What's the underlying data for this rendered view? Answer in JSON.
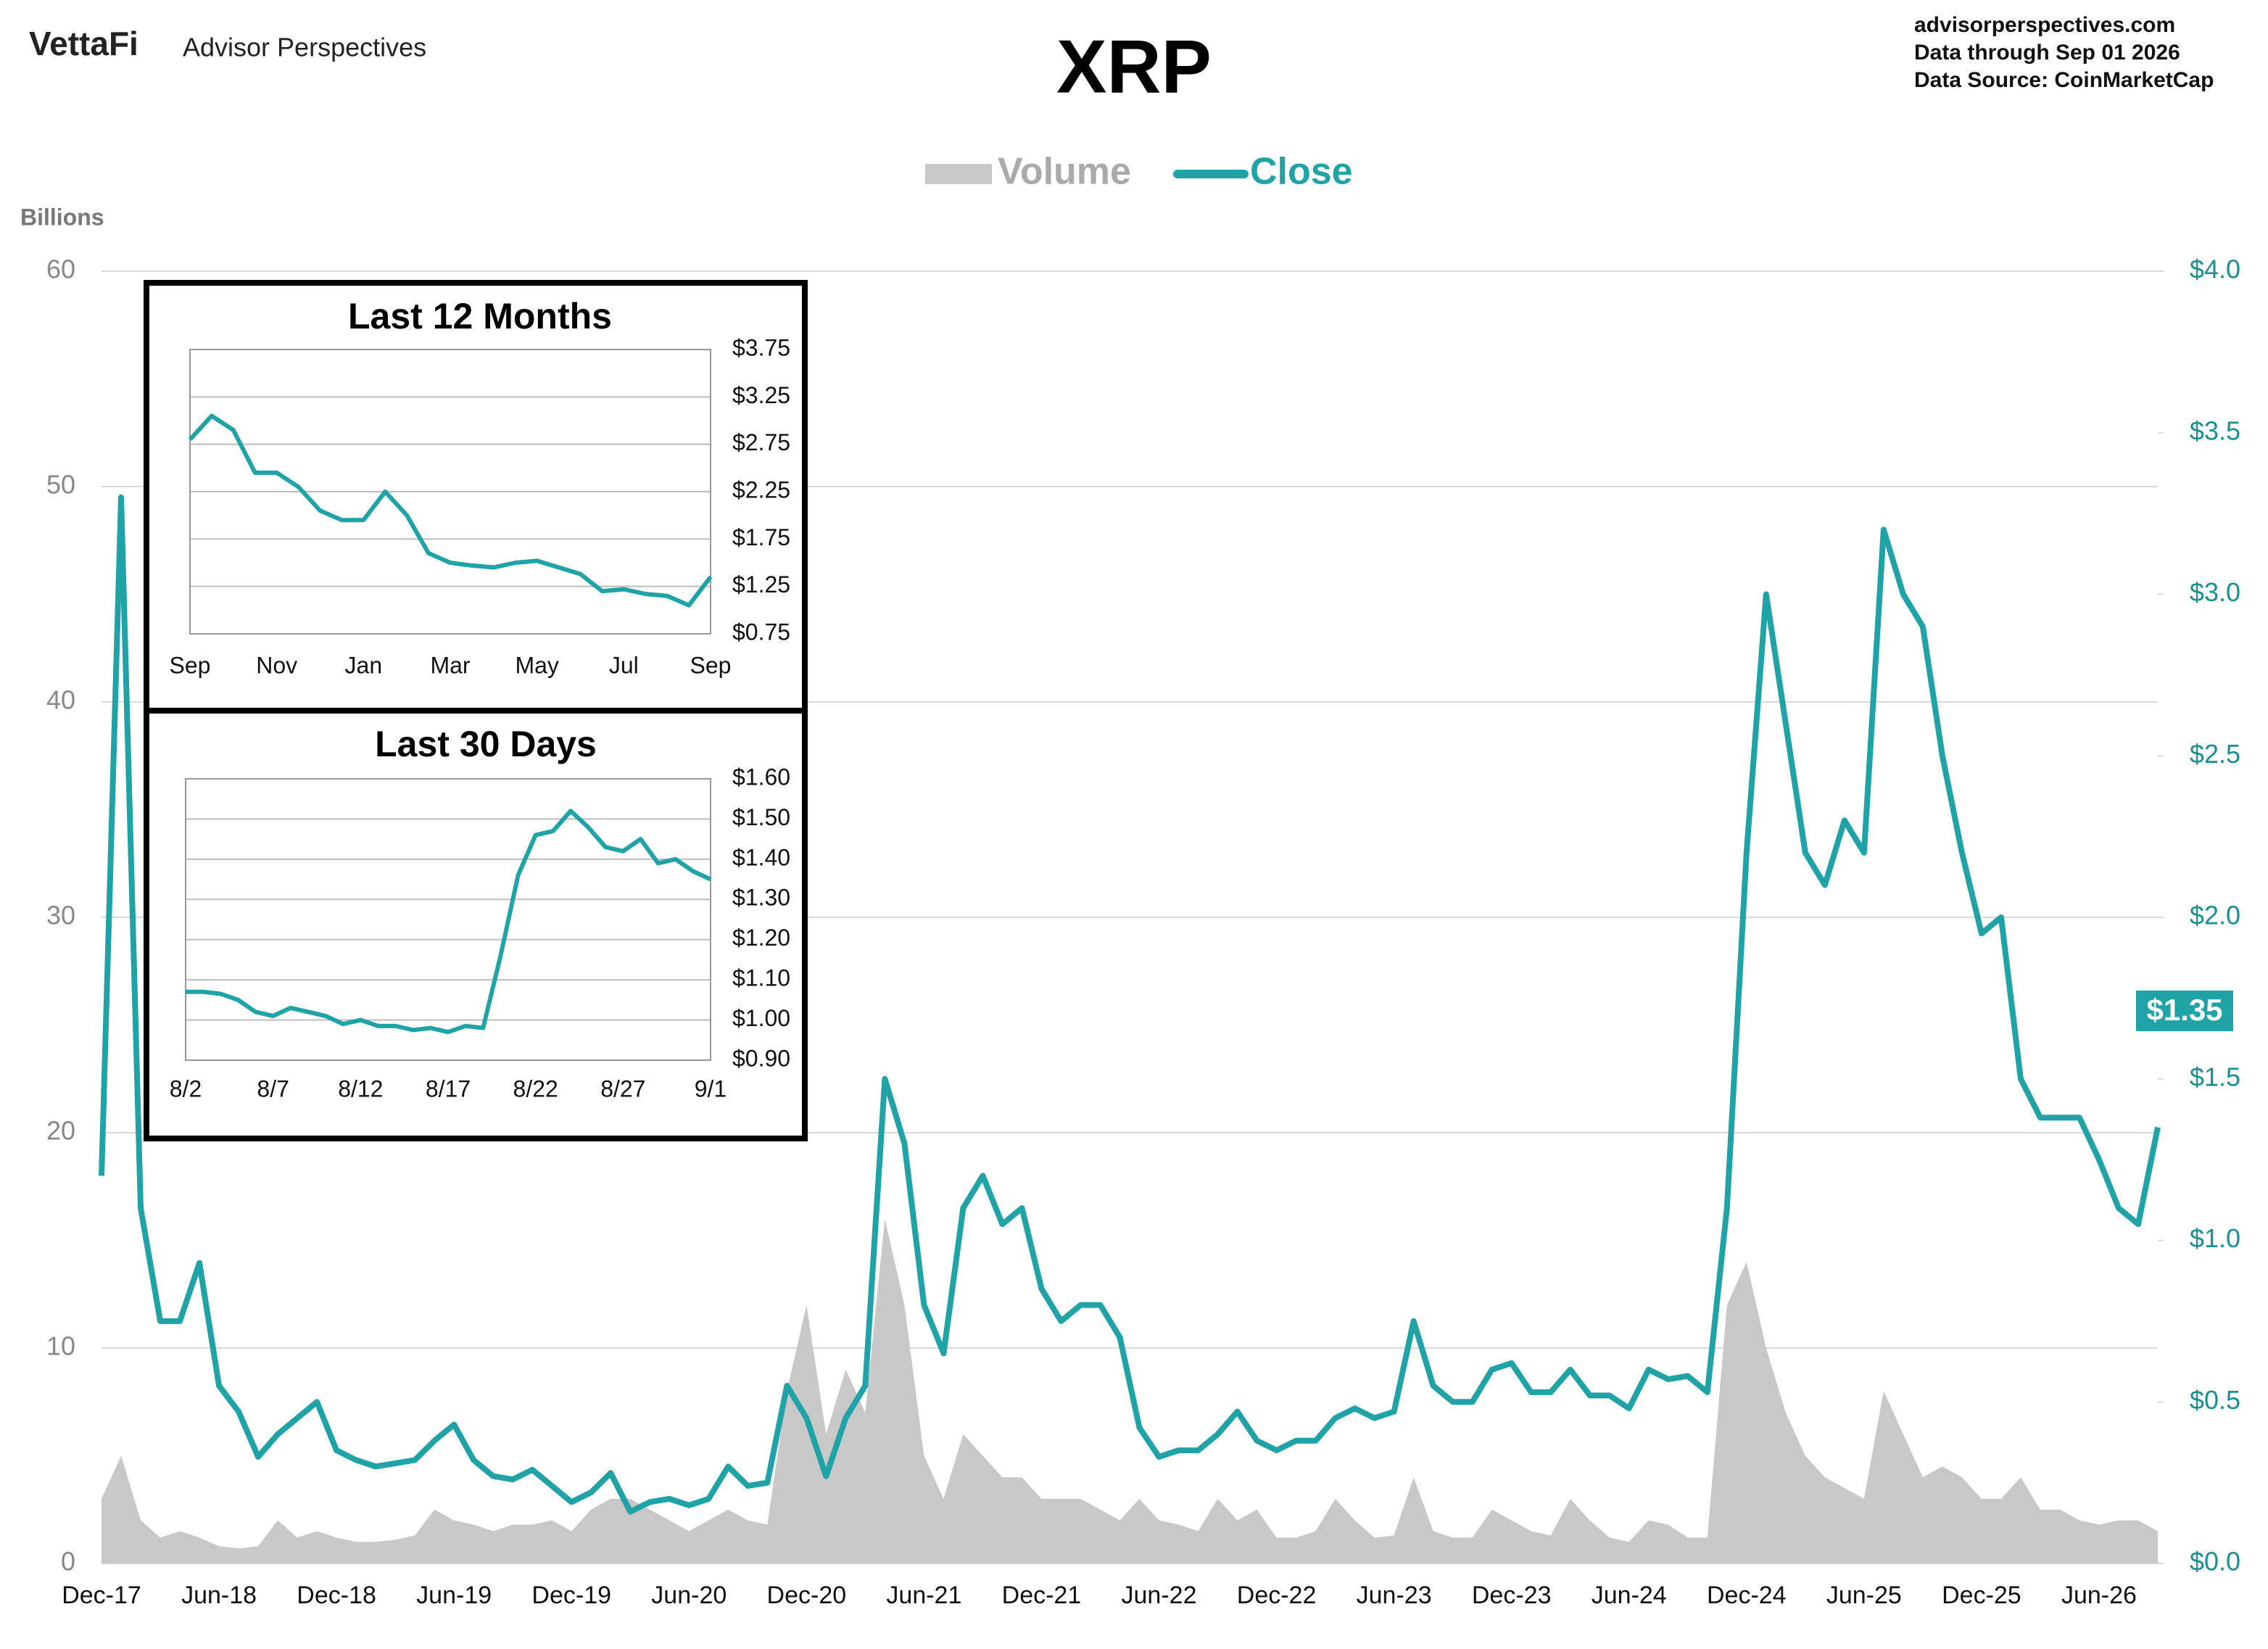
{
  "header": {
    "logo": "VettaFi",
    "brand": "Advisor Perspectives",
    "site": "advisorperspectives.com",
    "data_through": "Data through  Sep 01 2026",
    "source": "Data Source: CoinMarketCap"
  },
  "chart_data": [
    {
      "type": "combo",
      "title": "XRP",
      "y_label": "Billions",
      "grid": true,
      "legend": "top",
      "categories": [
        "Dec-17",
        null,
        null,
        null,
        null,
        null,
        "Jun-18",
        null,
        null,
        null,
        null,
        null,
        "Dec-18",
        null,
        null,
        null,
        null,
        null,
        "Jun-19",
        null,
        null,
        null,
        null,
        null,
        "Dec-19",
        null,
        null,
        null,
        null,
        null,
        "Jun-20",
        null,
        null,
        null,
        null,
        null,
        "Dec-20",
        null,
        null,
        null,
        null,
        null,
        "Jun-21",
        null,
        null,
        null,
        null,
        null,
        "Dec-21",
        null,
        null,
        null,
        null,
        null,
        "Jun-22",
        null,
        null,
        null,
        null,
        null,
        "Dec-22",
        null,
        null,
        null,
        null,
        null,
        "Jun-23",
        null,
        null,
        null,
        null,
        null,
        "Dec-23",
        null,
        null,
        null,
        null,
        null,
        "Jun-24",
        null,
        null,
        null,
        null,
        null,
        "Dec-24",
        null,
        null,
        null,
        null,
        null,
        "Jun-25",
        null,
        null,
        null,
        null,
        null,
        "Dec-25",
        null,
        null,
        null,
        null,
        null,
        "Jun-26",
        null,
        null,
        null
      ],
      "ylim": [
        0,
        60
      ],
      "yticks": [
        0,
        10,
        20,
        30,
        40,
        50,
        60
      ],
      "y2lim": [
        0,
        4
      ],
      "y2ticks": [
        {
          "value": 0,
          "label": "$0.0"
        },
        {
          "value": 0.5,
          "label": "$0.5"
        },
        {
          "value": 1,
          "label": "$1.0"
        },
        {
          "value": 1.5,
          "label": "$1.5"
        },
        {
          "value": 2,
          "label": "$2.0"
        },
        {
          "value": 2.5,
          "label": "$2.5"
        },
        {
          "value": 3,
          "label": "$3.0"
        },
        {
          "value": 3.5,
          "label": "$3.5"
        },
        {
          "value": 4,
          "label": "$4.0"
        }
      ],
      "series": [
        {
          "name": "Volume",
          "type": "area",
          "color": "#c8c8c8",
          "axis": "y",
          "values": [
            3,
            5,
            2,
            1.2,
            1.5,
            1.2,
            0.8,
            0.7,
            0.8,
            2,
            1.2,
            1.5,
            1.2,
            1.0,
            1.0,
            1.1,
            1.3,
            2.5,
            2.0,
            1.8,
            1.5,
            1.8,
            1.8,
            2.0,
            1.5,
            2.5,
            3.0,
            3.0,
            2.5,
            2.0,
            1.5,
            2.0,
            2.5,
            2.0,
            1.8,
            8,
            12,
            6,
            9,
            7,
            16,
            12,
            5,
            3,
            6,
            5,
            4,
            4,
            3,
            3,
            3,
            2.5,
            2,
            3,
            2,
            1.8,
            1.5,
            3,
            2,
            2.5,
            1.2,
            1.2,
            1.5,
            3,
            2,
            1.2,
            1.3,
            4,
            1.5,
            1.2,
            1.2,
            2.5,
            2,
            1.5,
            1.3,
            3,
            2,
            1.2,
            1.0,
            2,
            1.8,
            1.2,
            1.2,
            12,
            14,
            10,
            7,
            5,
            4,
            3.5,
            3,
            8,
            6,
            4,
            4.5,
            4,
            3,
            3,
            4,
            2.5,
            2.5,
            2,
            1.8,
            2,
            2,
            1.5
          ]
        },
        {
          "name": "Close",
          "type": "line",
          "color": "#1fa3a6",
          "axis": "y2",
          "values": [
            1.2,
            3.3,
            1.1,
            0.75,
            0.75,
            0.93,
            0.55,
            0.47,
            0.33,
            0.4,
            0.45,
            0.5,
            0.35,
            0.32,
            0.3,
            0.31,
            0.32,
            0.38,
            0.43,
            0.32,
            0.27,
            0.26,
            0.29,
            0.24,
            0.19,
            0.22,
            0.28,
            0.16,
            0.19,
            0.2,
            0.18,
            0.2,
            0.3,
            0.24,
            0.25,
            0.55,
            0.45,
            0.27,
            0.45,
            0.55,
            1.5,
            1.3,
            0.8,
            0.65,
            1.1,
            1.2,
            1.05,
            1.1,
            0.85,
            0.75,
            0.8,
            0.8,
            0.7,
            0.42,
            0.33,
            0.35,
            0.35,
            0.4,
            0.47,
            0.38,
            0.35,
            0.38,
            0.38,
            0.45,
            0.48,
            0.45,
            0.47,
            0.75,
            0.55,
            0.5,
            0.5,
            0.6,
            0.62,
            0.53,
            0.53,
            0.6,
            0.52,
            0.52,
            0.48,
            0.6,
            0.57,
            0.58,
            0.53,
            1.1,
            2.2,
            3.0,
            2.6,
            2.2,
            2.1,
            2.3,
            2.2,
            3.2,
            3.0,
            2.9,
            2.5,
            2.2,
            1.95,
            2.0,
            1.5,
            1.38,
            1.38,
            1.38,
            1.25,
            1.1,
            1.05,
            1.35
          ],
          "value_labels": [
            null,
            null,
            null,
            null,
            null,
            null,
            null,
            null,
            null,
            null,
            null,
            null,
            null,
            null,
            null,
            null,
            null,
            null,
            null,
            null,
            null,
            null,
            null,
            null,
            null,
            null,
            null,
            null,
            null,
            null,
            null,
            null,
            null,
            null,
            null,
            null,
            null,
            null,
            null,
            null,
            null,
            null,
            null,
            null,
            null,
            null,
            null,
            null,
            null,
            null,
            null,
            null,
            null,
            null,
            null,
            null,
            null,
            null,
            null,
            null,
            null,
            null,
            null,
            null,
            null,
            null,
            null,
            null,
            null,
            null,
            null,
            null,
            null,
            null,
            null,
            null,
            null,
            null,
            null,
            null,
            null,
            null,
            null,
            null,
            null,
            null,
            null,
            null,
            null,
            null,
            null,
            null,
            null,
            null,
            null,
            null,
            null,
            null,
            null,
            null,
            null,
            null,
            null,
            null,
            null,
            "$1.35"
          ]
        }
      ]
    },
    {
      "type": "line",
      "title": "Last 12 Months",
      "grid": true,
      "categories": [
        "Sep",
        null,
        null,
        null,
        "Nov",
        null,
        null,
        null,
        "Jan",
        null,
        null,
        null,
        "Mar",
        null,
        null,
        null,
        "May",
        null,
        null,
        null,
        "Jul",
        null,
        null,
        null,
        "Sep"
      ],
      "ylim": [
        0.75,
        3.75
      ],
      "yticks": [
        {
          "value": 0.75,
          "label": "$0.75"
        },
        {
          "value": 1.25,
          "label": "$1.25"
        },
        {
          "value": 1.75,
          "label": "$1.75"
        },
        {
          "value": 2.25,
          "label": "$2.25"
        },
        {
          "value": 2.75,
          "label": "$2.75"
        },
        {
          "value": 3.25,
          "label": "$3.25"
        },
        {
          "value": 3.75,
          "label": "$3.75"
        }
      ],
      "series": [
        {
          "name": "Close",
          "type": "line",
          "color": "#1fa3a6",
          "values": [
            2.8,
            3.05,
            2.9,
            2.45,
            2.45,
            2.3,
            2.05,
            1.95,
            1.95,
            2.25,
            2.0,
            1.6,
            1.5,
            1.47,
            1.45,
            1.5,
            1.52,
            1.45,
            1.38,
            1.2,
            1.22,
            1.17,
            1.15,
            1.05,
            1.35
          ]
        }
      ]
    },
    {
      "type": "line",
      "title": "Last 30 Days",
      "grid": true,
      "categories": [
        "8/2",
        null,
        null,
        null,
        null,
        "8/7",
        null,
        null,
        null,
        null,
        "8/12",
        null,
        null,
        null,
        null,
        "8/17",
        null,
        null,
        null,
        null,
        "8/22",
        null,
        null,
        null,
        null,
        "8/27",
        null,
        null,
        null,
        null,
        "9/1"
      ],
      "ylim": [
        0.9,
        1.6
      ],
      "yticks": [
        {
          "value": 0.9,
          "label": "$0.90"
        },
        {
          "value": 1.0,
          "label": "$1.00"
        },
        {
          "value": 1.1,
          "label": "$1.10"
        },
        {
          "value": 1.2,
          "label": "$1.20"
        },
        {
          "value": 1.3,
          "label": "$1.30"
        },
        {
          "value": 1.4,
          "label": "$1.40"
        },
        {
          "value": 1.5,
          "label": "$1.50"
        },
        {
          "value": 1.6,
          "label": "$1.60"
        }
      ],
      "series": [
        {
          "name": "Close",
          "type": "line",
          "color": "#1fa3a6",
          "values": [
            1.07,
            1.07,
            1.065,
            1.05,
            1.02,
            1.01,
            1.03,
            1.02,
            1.01,
            0.99,
            1.0,
            0.985,
            0.985,
            0.975,
            0.98,
            0.97,
            0.985,
            0.98,
            1.16,
            1.36,
            1.46,
            1.47,
            1.52,
            1.48,
            1.43,
            1.42,
            1.45,
            1.39,
            1.4,
            1.37,
            1.35
          ]
        }
      ]
    }
  ]
}
